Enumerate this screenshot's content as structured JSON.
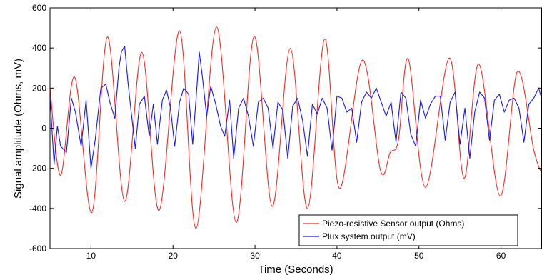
{
  "chart_data": {
    "type": "line",
    "xlabel": "Time (Seconds)",
    "ylabel": "Signal amplitude (Ohms, mV)",
    "xlim": [
      5,
      65
    ],
    "ylim": [
      -600,
      600
    ],
    "xticks": [
      10,
      20,
      30,
      40,
      50,
      60
    ],
    "yticks": [
      -600,
      -400,
      -200,
      0,
      200,
      400,
      600
    ],
    "grid": false,
    "legend_position": "bottom-right",
    "series": [
      {
        "name": "Piezo-resistive Sensor output (Ohms)",
        "color": "#e8302a",
        "x": [
          5.0,
          6.3,
          8.0,
          10.1,
          12.0,
          14.1,
          16.2,
          18.3,
          20.8,
          22.8,
          25.3,
          27.7,
          29.9,
          32.1,
          34.3,
          36.4,
          38.5,
          40.3,
          43.1,
          45.3,
          46.5,
          47.5,
          48.7,
          50.8,
          53.7,
          55.5,
          57.3,
          59.9,
          62.0,
          64.0,
          65.0
        ],
        "y": [
          200,
          -235,
          255,
          -420,
          455,
          -365,
          378,
          -410,
          485,
          -500,
          505,
          -470,
          458,
          -390,
          398,
          -400,
          445,
          -300,
          340,
          -210,
          -120,
          -60,
          345,
          -295,
          350,
          -250,
          320,
          -338,
          282,
          -110,
          -230
        ]
      },
      {
        "name": "Plux system output (mV)",
        "color": "#1a1adb",
        "x": [
          5.0,
          5.5,
          5.9,
          6.3,
          7.0,
          7.6,
          8.1,
          8.8,
          9.4,
          10.0,
          10.5,
          11.2,
          11.8,
          12.3,
          12.9,
          13.4,
          13.7,
          14.1,
          14.5,
          14.9,
          15.4,
          15.9,
          16.5,
          17.1,
          17.6,
          18.1,
          18.7,
          19.2,
          19.7,
          20.2,
          20.8,
          21.3,
          21.9,
          22.4,
          22.9,
          23.2,
          23.6,
          24.1,
          24.6,
          25.2,
          25.8,
          26.3,
          26.9,
          27.4,
          28.0,
          28.6,
          29.2,
          29.8,
          30.4,
          31.0,
          31.6,
          32.2,
          32.8,
          33.4,
          34.0,
          34.6,
          35.2,
          35.8,
          36.4,
          37.0,
          37.6,
          38.2,
          38.8,
          39.4,
          40.0,
          40.6,
          41.2,
          41.8,
          42.4,
          43.0,
          43.6,
          44.2,
          44.8,
          45.4,
          46.0,
          46.6,
          47.2,
          47.8,
          48.4,
          49.0,
          49.6,
          50.2,
          50.8,
          51.4,
          52.0,
          52.6,
          53.2,
          53.8,
          54.4,
          55.0,
          55.6,
          56.2,
          56.8,
          57.4,
          58.0,
          58.6,
          59.2,
          59.8,
          60.4,
          61.0,
          61.6,
          62.2,
          62.8,
          63.4,
          64.0,
          64.6,
          65.0
        ],
        "y": [
          160,
          -180,
          10,
          -90,
          -120,
          150,
          80,
          -90,
          140,
          -200,
          -60,
          200,
          220,
          130,
          50,
          300,
          380,
          410,
          230,
          80,
          -100,
          120,
          160,
          -40,
          120,
          -80,
          140,
          190,
          100,
          -90,
          130,
          200,
          170,
          -80,
          200,
          380,
          250,
          60,
          210,
          120,
          10,
          -40,
          140,
          -150,
          100,
          150,
          60,
          -90,
          130,
          150,
          100,
          -100,
          130,
          90,
          -150,
          110,
          150,
          40,
          -140,
          120,
          70,
          150,
          100,
          -110,
          160,
          150,
          80,
          100,
          -70,
          130,
          180,
          150,
          200,
          130,
          60,
          130,
          -70,
          180,
          150,
          -30,
          -90,
          140,
          50,
          120,
          160,
          160,
          -60,
          130,
          180,
          -80,
          100,
          -150,
          80,
          180,
          150,
          -60,
          140,
          170,
          80,
          140,
          150,
          100,
          -70,
          120,
          150,
          200,
          140
        ]
      }
    ]
  }
}
